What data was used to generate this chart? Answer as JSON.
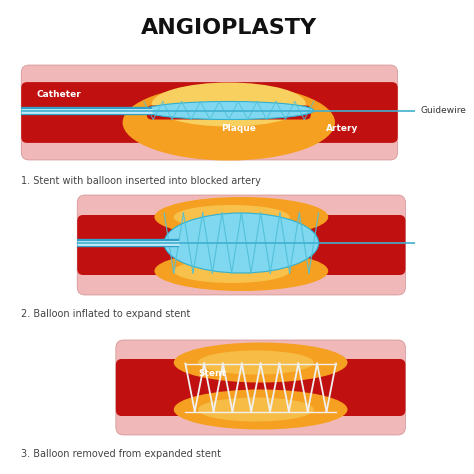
{
  "title": "ANGIOPLASTY",
  "title_fontsize": 16,
  "title_fontweight": "bold",
  "background_color": "#ffffff",
  "captions": [
    "1. Stent with balloon inserted into blocked artery",
    "2. Balloon inflated to expand stent",
    "3. Balloon removed from expanded stent"
  ],
  "labels": {
    "catheter": "Catheter",
    "guidewire": "Guidewire",
    "plaque": "Plaque",
    "artery": "Artery",
    "stent": "Stent"
  },
  "colors": {
    "artery_outer": "#f0b8b8",
    "artery_inner_light": "#e05050",
    "artery_dark": "#c01010",
    "plaque_orange": "#f5a020",
    "plaque_yellow": "#f8d060",
    "balloon_fill": "#80d8f0",
    "balloon_edge": "#30b0d0",
    "stent_line": "#50c0d8",
    "guidewire_color": "#40b0d0",
    "catheter_outer": "#30a0c8",
    "catheter_inner": "#c0eaf8",
    "label_white": "#ffffff",
    "label_dark": "#333333",
    "caption_color": "#444444",
    "stent3_color": "#f0f0f0"
  }
}
